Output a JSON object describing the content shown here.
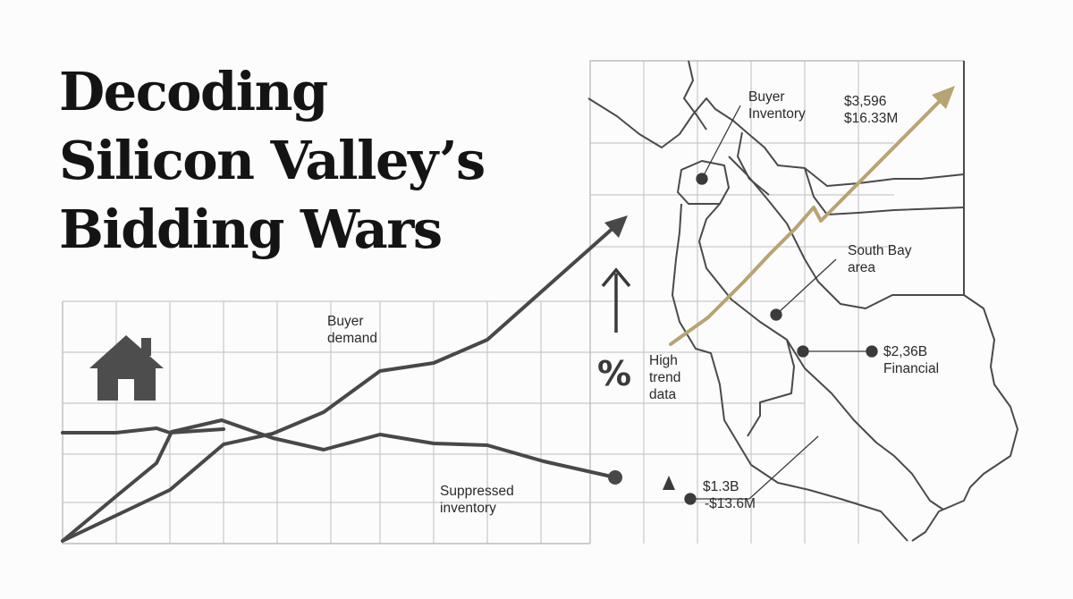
{
  "title": {
    "line1": "Decoding",
    "line2": "Silicon Valley’s",
    "line3": "Bidding Wars"
  },
  "labels": {
    "buyer_demand": {
      "line1": "Buyer",
      "line2": "demand"
    },
    "suppressed_inventory": {
      "line1": "Suppressed",
      "line2": "inventory"
    },
    "percent_symbol": "%",
    "high_trend_data": {
      "line1": "High",
      "line2": "trend",
      "line3": "data"
    },
    "buyer_inventory": {
      "line1": "Buyer",
      "line2": "Inventory"
    },
    "top_value": {
      "line1": "$3,596",
      "line2": "$16.33M"
    },
    "south_bay": {
      "line1": "South Bay",
      "line2": "area"
    },
    "financial": {
      "line1": "$2,36B",
      "line2": "Financial"
    },
    "bottom_value": {
      "line1": "$1.3B",
      "line2": "-$13.6M"
    }
  },
  "colors": {
    "background": "#fcfcfc",
    "title": "#141414",
    "line_dark": "#484848",
    "grid": "#c9c9c9",
    "map_outline": "#4a4a4a",
    "gold_trend": "#b8a373",
    "house_icon": "#4d4d4d"
  },
  "icons": [
    "house-icon",
    "up-arrow-icon",
    "triangle-marker-icon"
  ]
}
